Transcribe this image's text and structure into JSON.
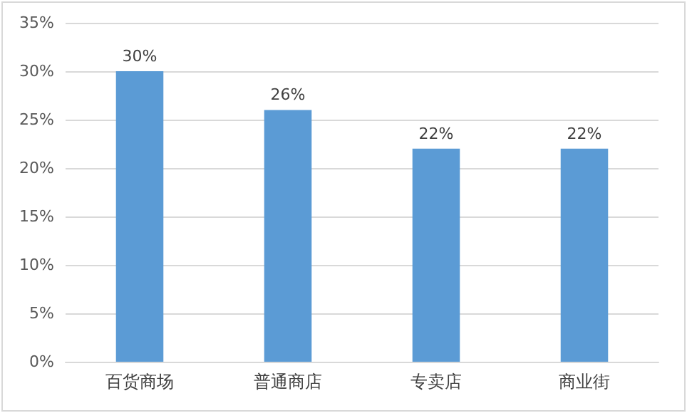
{
  "chart_data": {
    "type": "bar",
    "categories": [
      "百货商场",
      "普通商店",
      "专卖店",
      "商业街"
    ],
    "values": [
      30,
      26,
      22,
      22
    ],
    "value_labels": [
      "30%",
      "26%",
      "22%",
      "22%"
    ],
    "color": "#5b9bd5",
    "ylim": [
      0,
      35
    ],
    "yticks": [
      {
        "value": 0,
        "label": "0%"
      },
      {
        "value": 5,
        "label": "5%"
      },
      {
        "value": 10,
        "label": "10%"
      },
      {
        "value": 15,
        "label": "15%"
      },
      {
        "value": 20,
        "label": "20%"
      },
      {
        "value": 25,
        "label": "25%"
      },
      {
        "value": 30,
        "label": "30%"
      },
      {
        "value": 35,
        "label": "35%"
      }
    ],
    "grid": "y"
  }
}
